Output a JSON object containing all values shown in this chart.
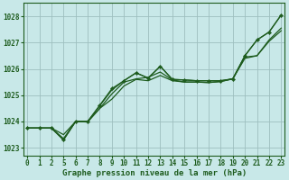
{
  "background_color": "#c8e8e8",
  "grid_color": "#9dbfbf",
  "line_color": "#1e5c1e",
  "xlabel": "Graphe pression niveau de la mer (hPa)",
  "ylim": [
    1022.7,
    1028.5
  ],
  "yticks": [
    1023,
    1024,
    1025,
    1026,
    1027,
    1028
  ],
  "hours": [
    0,
    1,
    2,
    5,
    6,
    7,
    8,
    9,
    10,
    11,
    12,
    13,
    14,
    15,
    16,
    17,
    18,
    19,
    20,
    21,
    22,
    23
  ],
  "series": [
    {
      "y": [
        1023.75,
        1023.75,
        1023.75,
        1023.3,
        1024.0,
        1024.0,
        1024.6,
        1025.2,
        1025.55,
        1025.85,
        1025.65,
        1026.1,
        1025.6,
        1025.58,
        1025.55,
        1025.55,
        1025.55,
        1025.62,
        1026.5,
        1027.1,
        1027.4,
        1028.05
      ]
    },
    {
      "y": [
        1023.75,
        1023.75,
        1023.75,
        1023.35,
        1024.0,
        1023.98,
        1024.5,
        1024.85,
        1025.35,
        1025.6,
        1025.55,
        1025.75,
        1025.55,
        1025.5,
        1025.5,
        1025.48,
        1025.52,
        1025.62,
        1026.4,
        1026.5,
        1027.05,
        1027.45
      ]
    },
    {
      "y": [
        1023.75,
        1023.75,
        1023.75,
        1023.5,
        1024.0,
        1024.0,
        1024.5,
        1025.05,
        1025.5,
        1025.62,
        1025.68,
        1025.88,
        1025.58,
        1025.5,
        1025.5,
        1025.48,
        1025.52,
        1025.62,
        1026.45,
        1026.5,
        1027.1,
        1027.55
      ]
    }
  ],
  "marker_series": {
    "y": [
      1023.75,
      1023.75,
      1023.75,
      1023.3,
      1024.0,
      1024.0,
      1024.62,
      1025.25,
      1025.55,
      1025.85,
      1025.65,
      1026.1,
      1025.6,
      1025.58,
      1025.55,
      1025.55,
      1025.55,
      1025.62,
      1026.5,
      1027.1,
      1027.4,
      1028.05
    ]
  },
  "xlabel_fontsize": 6.5,
  "tick_fontsize": 5.5
}
